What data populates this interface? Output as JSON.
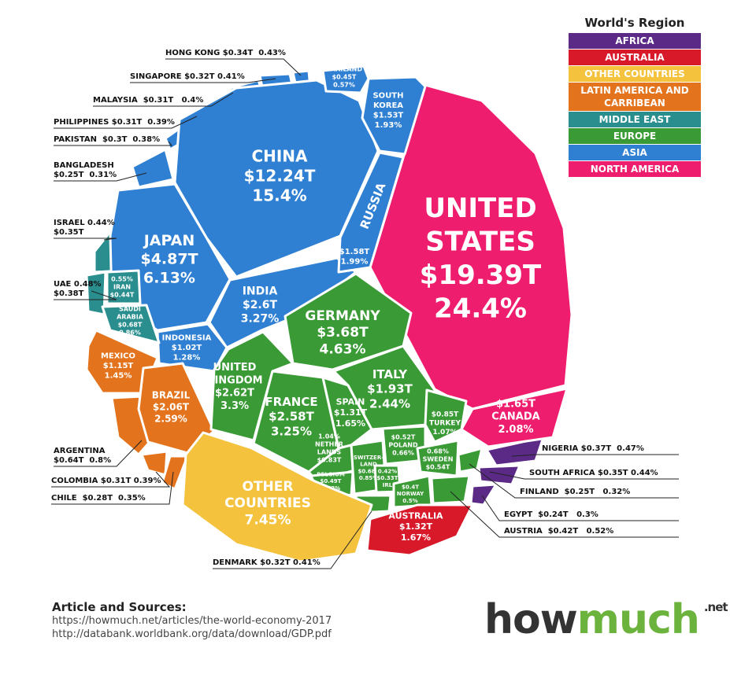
{
  "legend": {
    "title": "World's Region",
    "items": [
      "AFRICA",
      "AUSTRALIA",
      "OTHER COUNTRIES",
      "LATIN AMERICA AND CARRIBEAN",
      "MIDDLE EAST",
      "EUROPE",
      "ASIA",
      "NORTH AMERICA"
    ]
  },
  "cells": [
    {
      "lines": [
        "UNITED",
        "STATES",
        "$19.39T",
        "24.4%"
      ]
    },
    {
      "lines": [
        "CHINA",
        "$12.24T",
        "15.4%"
      ]
    },
    {
      "lines": [
        "JAPAN",
        "$4.87T",
        "6.13%"
      ]
    },
    {
      "lines": [
        "INDIA",
        "$2.6T",
        "3.27%"
      ]
    },
    {
      "lines": [
        "RUSSIA",
        "$1.58T",
        "1.99%"
      ]
    },
    {
      "lines": [
        "SOUTH",
        "KOREA",
        "$1.53T",
        "1.93%"
      ]
    },
    {
      "lines": [
        "THAILAND",
        "$0.45T",
        "0.57%"
      ]
    },
    {
      "lines": [
        "INDONESIA",
        "$1.02T",
        "1.28%"
      ]
    },
    {
      "lines": [
        "0.55%",
        "IRAN",
        "$0.44T"
      ]
    },
    {
      "lines": [
        "SAUDI",
        "ARABIA",
        "$0.68T",
        "0.86%"
      ]
    },
    {
      "lines": [
        "MEXICO",
        "$1.15T",
        "1.45%"
      ]
    },
    {
      "lines": [
        "BRAZIL",
        "$2.06T",
        "2.59%"
      ]
    },
    {
      "lines": [
        "GERMANY",
        "$3.68T",
        "4.63%"
      ]
    },
    {
      "lines": [
        "UNITED",
        "KINGDOM",
        "$2.62T",
        "3.3%"
      ]
    },
    {
      "lines": [
        "FRANCE",
        "$2.58T",
        "3.25%"
      ]
    },
    {
      "lines": [
        "ITALY",
        "$1.93T",
        "2.44%"
      ]
    },
    {
      "lines": [
        "SPAIN",
        "$1.31T",
        "1.65%"
      ]
    },
    {
      "lines": [
        "1.04%",
        "NETHER",
        "LANDS",
        "$0.83T"
      ]
    },
    {
      "lines": [
        "BELGIUM",
        "$0.49T",
        "0.62%"
      ]
    },
    {
      "lines": [
        "SWITZER-",
        "LAND",
        "$0.68T",
        "0.85%"
      ]
    },
    {
      "lines": [
        "$0.52T",
        "POLAND",
        "0.66%"
      ]
    },
    {
      "lines": [
        "0.68%",
        "SWEDEN",
        "$0.54T"
      ]
    },
    {
      "lines": [
        "$0.85T",
        "TURKEY",
        "1.07%"
      ]
    },
    {
      "lines": [
        "0.42%",
        "$0.33T",
        "IRL"
      ]
    },
    {
      "lines": [
        "$0.4T",
        "NORWAY",
        "0.5%"
      ]
    },
    {
      "lines": [
        "$1.65T",
        "CANADA",
        "2.08%"
      ]
    },
    {
      "lines": [
        "OTHER",
        "COUNTRIES",
        "7.45%"
      ]
    },
    {
      "lines": [
        "AUSTRALIA",
        "$1.32T",
        "1.67%"
      ]
    }
  ],
  "callouts": [
    {
      "lines": [
        "HONG KONG $0.34T  0.43%"
      ]
    },
    {
      "lines": [
        "SINGAPORE $0.32T 0.41%"
      ]
    },
    {
      "lines": [
        "MALAYSIA  $0.31T   0.4%"
      ]
    },
    {
      "lines": [
        "PHILIPPINES $0.31T  0.39%"
      ]
    },
    {
      "lines": [
        "PAKISTAN  $0.3T  0.38%"
      ]
    },
    {
      "lines": [
        "BANGLADESH",
        "$0.25T  0.31%"
      ]
    },
    {
      "lines": [
        "ISRAEL 0.44%",
        "$0.35T"
      ]
    },
    {
      "lines": [
        "UAE 0.48%",
        "$0.38T"
      ]
    },
    {
      "lines": [
        "ARGENTINA",
        "$0.64T  0.8%"
      ]
    },
    {
      "lines": [
        "COLOMBIA $0.31T 0.39%"
      ]
    },
    {
      "lines": [
        "CHILE  $0.28T  0.35%"
      ]
    },
    {
      "lines": [
        "DENMARK $0.32T 0.41%"
      ]
    },
    {
      "lines": [
        "NIGERIA $0.37T  0.47%"
      ]
    },
    {
      "lines": [
        "SOUTH AFRICA $0.35T 0.44%"
      ]
    },
    {
      "lines": [
        "FINLAND  $0.25T   0.32%"
      ]
    },
    {
      "lines": [
        "EGYPT  $0.24T   0.3%"
      ]
    },
    {
      "lines": [
        "AUSTRIA  $0.42T   0.52%"
      ]
    }
  ],
  "sources": {
    "title": "Article and Sources:",
    "links": [
      "https://howmuch.net/articles/the-world-economy-2017",
      "http://databank.worldbank.org/data/download/GDP.pdf"
    ]
  },
  "logo": {
    "parts": [
      "how",
      "much"
    ],
    "suffix": ".net"
  }
}
